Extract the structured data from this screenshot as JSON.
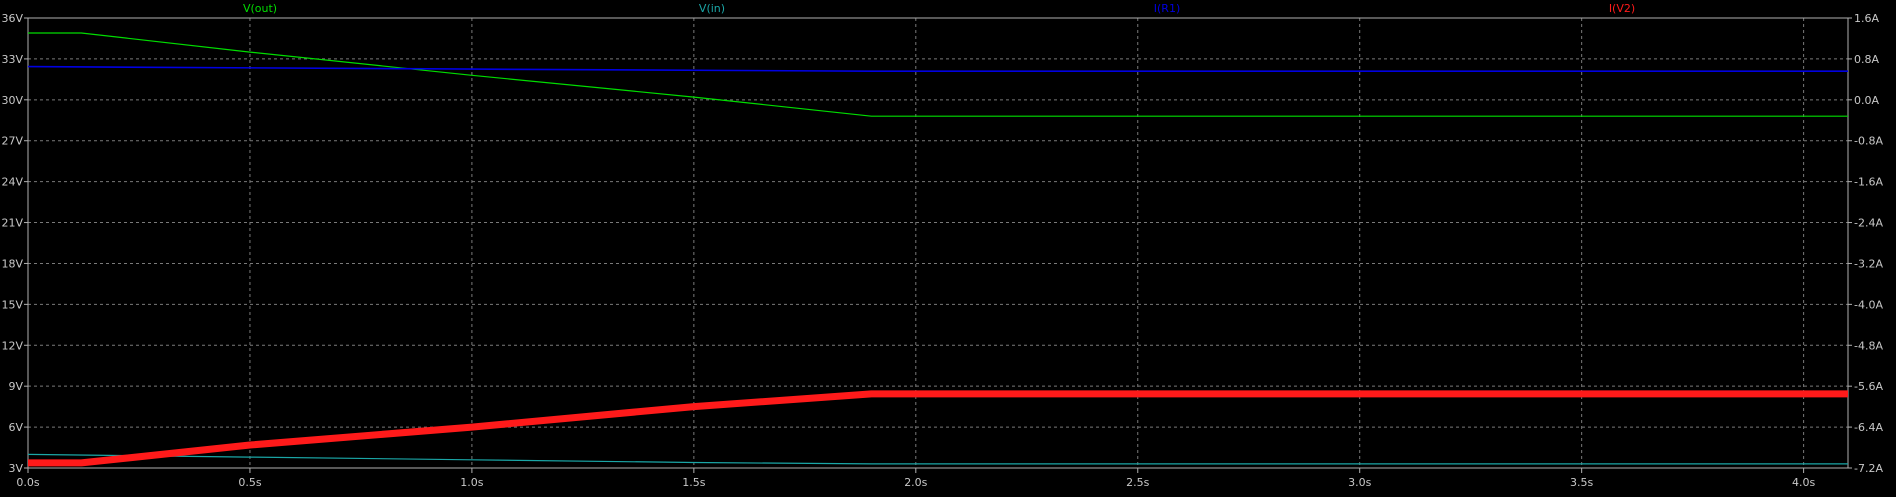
{
  "chart_data": {
    "type": "line",
    "title": "",
    "xlabel": "",
    "ylabel": "",
    "xlim": [
      0,
      4.1
    ],
    "ylim_left": [
      3,
      36
    ],
    "ylim_right": [
      -7.2,
      1.6
    ],
    "grid": true,
    "legend_placement": "top",
    "x_ticks": [
      {
        "value": 0.0,
        "label": "0.0s"
      },
      {
        "value": 0.5,
        "label": "0.5s"
      },
      {
        "value": 1.0,
        "label": "1.0s"
      },
      {
        "value": 1.5,
        "label": "1.5s"
      },
      {
        "value": 2.0,
        "label": "2.0s"
      },
      {
        "value": 2.5,
        "label": "2.5s"
      },
      {
        "value": 3.0,
        "label": "3.0s"
      },
      {
        "value": 3.5,
        "label": "3.5s"
      },
      {
        "value": 4.0,
        "label": "4.0s"
      }
    ],
    "y_left_ticks": [
      {
        "value": 36,
        "label": "36V"
      },
      {
        "value": 33,
        "label": "33V"
      },
      {
        "value": 30,
        "label": "30V"
      },
      {
        "value": 27,
        "label": "27V"
      },
      {
        "value": 24,
        "label": "24V"
      },
      {
        "value": 21,
        "label": "21V"
      },
      {
        "value": 18,
        "label": "18V"
      },
      {
        "value": 15,
        "label": "15V"
      },
      {
        "value": 12,
        "label": "12V"
      },
      {
        "value": 9,
        "label": "9V"
      },
      {
        "value": 6,
        "label": "6V"
      },
      {
        "value": 3,
        "label": "3V"
      }
    ],
    "y_right_ticks": [
      {
        "value": 1.6,
        "label": "1.6A"
      },
      {
        "value": 0.8,
        "label": "0.8A"
      },
      {
        "value": 0.0,
        "label": "0.0A"
      },
      {
        "value": -0.8,
        "label": "-0.8A"
      },
      {
        "value": -1.6,
        "label": "-1.6A"
      },
      {
        "value": -2.4,
        "label": "-2.4A"
      },
      {
        "value": -3.2,
        "label": "-3.2A"
      },
      {
        "value": -4.0,
        "label": "-4.0A"
      },
      {
        "value": -4.8,
        "label": "-4.8A"
      },
      {
        "value": -5.6,
        "label": "-5.6A"
      },
      {
        "value": -6.4,
        "label": "-6.4A"
      },
      {
        "value": -7.2,
        "label": "-7.2A"
      }
    ],
    "series": [
      {
        "name": "V(out)",
        "axis": "left",
        "color": "#00dd00",
        "width": 1.2,
        "x": [
          0,
          0.12,
          0.5,
          1.0,
          1.5,
          1.9,
          4.1
        ],
        "y": [
          34.9,
          34.9,
          33.5,
          31.8,
          30.2,
          28.8,
          28.8
        ]
      },
      {
        "name": "V(in)",
        "axis": "left",
        "color": "#1aa6a6",
        "width": 1.2,
        "x": [
          0,
          0.5,
          1.0,
          1.5,
          1.9,
          4.1
        ],
        "y": [
          4.0,
          3.8,
          3.6,
          3.4,
          3.3,
          3.3
        ]
      },
      {
        "name": "I(R1)",
        "axis": "right",
        "color": "#0000e0",
        "width": 1.6,
        "x": [
          0,
          1.0,
          1.9,
          4.1
        ],
        "y": [
          0.65,
          0.6,
          0.56,
          0.56
        ]
      },
      {
        "name": "I(V2)",
        "axis": "right",
        "color": "#ff1a1a",
        "width": 7,
        "x": [
          0,
          0.12,
          0.5,
          1.0,
          1.5,
          1.9,
          4.1
        ],
        "y": [
          -7.1,
          -7.1,
          -6.75,
          -6.4,
          -6.0,
          -5.75,
          -5.75
        ]
      }
    ]
  }
}
